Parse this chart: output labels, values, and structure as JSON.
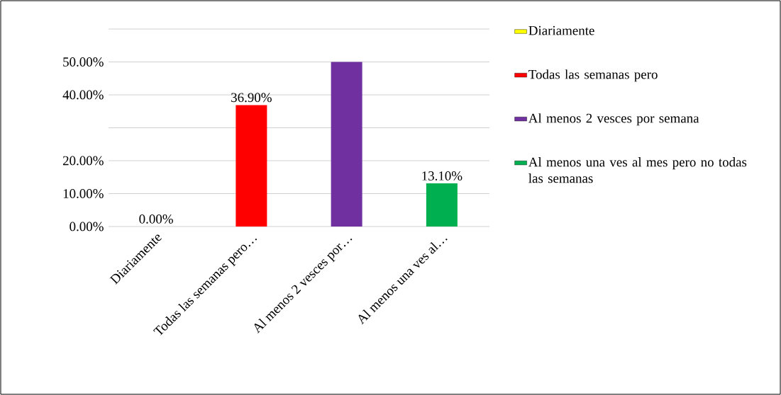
{
  "chart_data": {
    "type": "bar",
    "categories": [
      "Diariamente",
      "Todas las semanas pero…",
      "Al menos 2 vesces por…",
      "Al menos una ves al…"
    ],
    "series": [
      {
        "name": "Diariamente",
        "color": "#ffff00",
        "values": [
          0,
          null,
          null,
          null
        ],
        "value_labels": [
          "0.00%",
          null,
          null,
          null
        ]
      },
      {
        "name": "Todas las semanas pero",
        "color": "#ff0000",
        "values": [
          null,
          36.9,
          null,
          null
        ],
        "value_labels": [
          null,
          "36.90%",
          null,
          null
        ]
      },
      {
        "name": "Al menos 2 vesces por semana",
        "color": "#7030a0",
        "values": [
          null,
          null,
          50,
          null
        ]
      },
      {
        "name": "Al menos una ves al mes pero no todas las semanas",
        "color": "#00b050",
        "values": [
          null,
          null,
          null,
          13.1
        ],
        "value_labels": [
          null,
          null,
          null,
          "13.10%"
        ]
      }
    ],
    "ylim": [
      0,
      60
    ],
    "yticks": [
      {
        "value": 0,
        "label": "0.00%"
      },
      {
        "value": 10,
        "label": "10.00%"
      },
      {
        "value": 20,
        "label": "20.00%"
      },
      {
        "value": 30,
        "label": null
      },
      {
        "value": 40,
        "label": "40.00%"
      },
      {
        "value": 50,
        "label": "50.00%"
      },
      {
        "value": 60,
        "label": null
      }
    ],
    "grid": "y",
    "legend": "right"
  }
}
